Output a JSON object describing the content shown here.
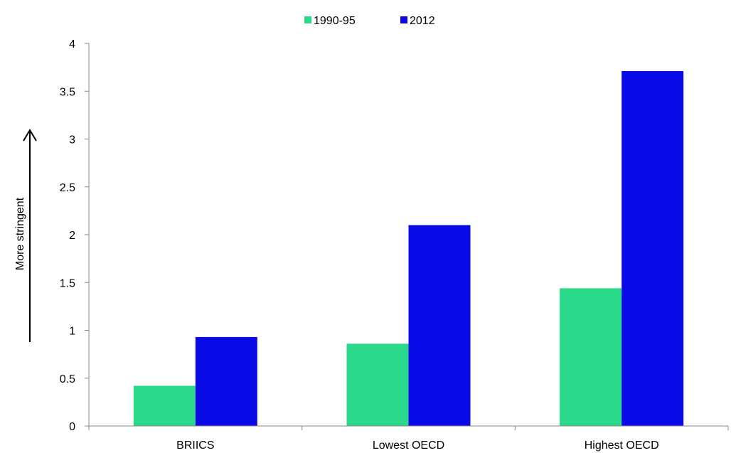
{
  "chart_data": {
    "type": "bar",
    "title": "",
    "xlabel": "",
    "ylabel": "More stringent",
    "categories": [
      "BRIICS",
      "Lowest OECD",
      "Highest OECD"
    ],
    "series": [
      {
        "name": "1990-95",
        "values": [
          0.42,
          0.86,
          1.44
        ],
        "color": "#2ad98a"
      },
      {
        "name": "2012",
        "values": [
          0.93,
          2.1,
          3.71
        ],
        "color": "#0a0ae6"
      }
    ],
    "ylim": [
      0,
      4
    ],
    "yticks": [
      "0",
      "0.5",
      "1",
      "1.5",
      "2",
      "2.5",
      "3",
      "3.5",
      "4"
    ],
    "legend_position": "top-center",
    "grid": false
  }
}
